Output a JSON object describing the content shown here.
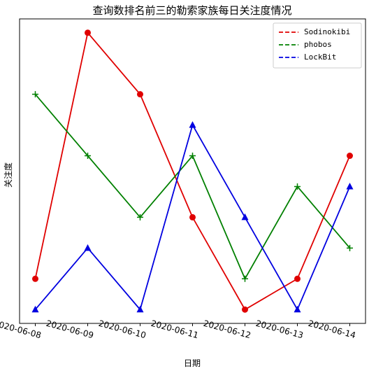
{
  "chart_data": {
    "type": "line",
    "title": "查询数排名前三的勒索家族每日关注度情况",
    "x_label": "日期",
    "y_label": "关注度",
    "categories": [
      "2020-06-08",
      "2020-06-09",
      "2020-06-10",
      "2020-06-11",
      "2020-06-12",
      "2020-06-13",
      "2020-06-14"
    ],
    "series": [
      {
        "name": "Sodinokibi",
        "color": "#e00000",
        "marker": "circle",
        "values": [
          2,
          10,
          8,
          4,
          1,
          2,
          6
        ]
      },
      {
        "name": "phobos",
        "color": "#008000",
        "marker": "plus",
        "values": [
          8,
          6,
          4,
          6,
          2,
          5,
          3
        ]
      },
      {
        "name": "LockBit",
        "color": "#0000e0",
        "marker": "triangle",
        "values": [
          1,
          3,
          1,
          7,
          4,
          1,
          5
        ]
      }
    ],
    "ylim": [
      0.55,
      10.45
    ],
    "legend": "upper right",
    "grid": false
  }
}
